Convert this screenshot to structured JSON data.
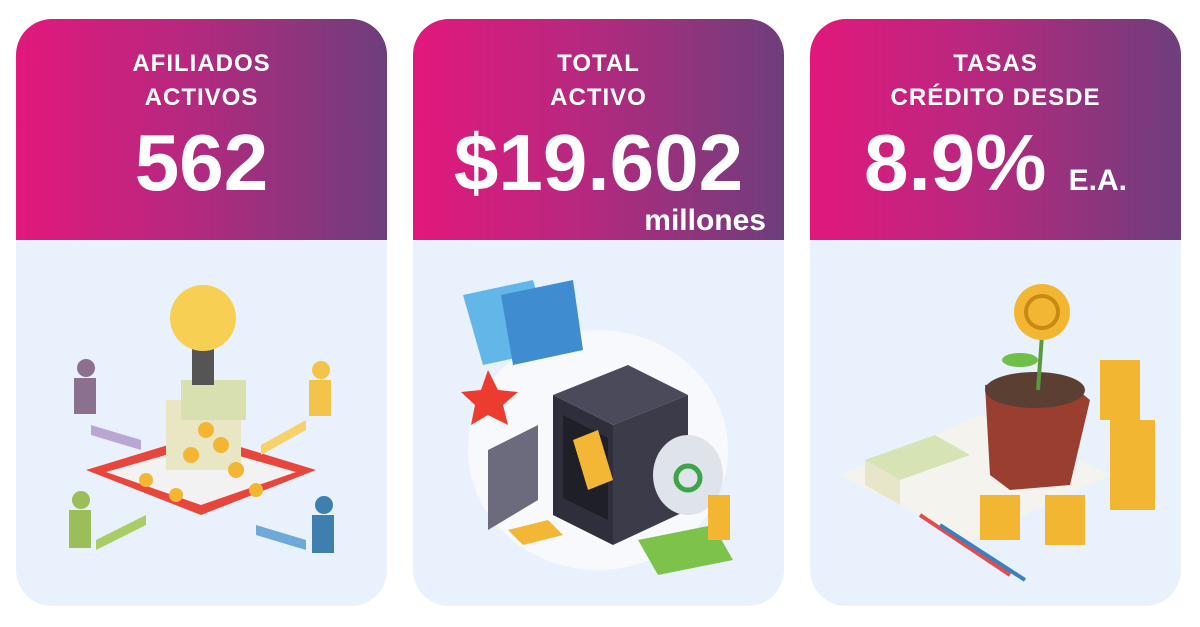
{
  "cards": [
    {
      "title_line1": "AFILIADOS",
      "title_line2": "ACTIVOS",
      "value": "562",
      "illustration": "idea-money-people"
    },
    {
      "title_line1": "TOTAL",
      "title_line2": "ACTIVO",
      "value": "$19.602",
      "unit": "millones",
      "illustration": "safe-gold-cards"
    },
    {
      "title_line1": "TASAS",
      "title_line2": "CRÉDITO DESDE",
      "value": "8.9%",
      "unit": "E.A.",
      "illustration": "plant-coins"
    }
  ],
  "colors": {
    "gradient_start": "#e2187c",
    "gradient_end": "#6e3e7c",
    "card_body": "#e8f1fc",
    "text": "#ffffff"
  }
}
